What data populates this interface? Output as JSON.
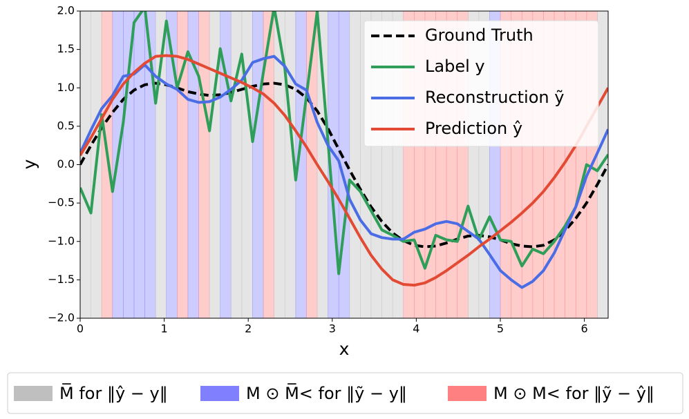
{
  "chart_data": {
    "type": "line",
    "x_label": "x",
    "y_label": "y",
    "xlim": [
      0,
      6.283
    ],
    "ylim": [
      -2,
      2
    ],
    "xticks": [
      0,
      1,
      2,
      3,
      4,
      5,
      6
    ],
    "yticks": [
      {
        "value": -2,
        "label": "−2.0"
      },
      {
        "value": -1.5,
        "label": "−1.5"
      },
      {
        "value": -1,
        "label": "−1.0"
      },
      {
        "value": -0.5,
        "label": "−0.5"
      },
      {
        "value": 0,
        "label": "0.0"
      },
      {
        "value": 0.5,
        "label": "0.5"
      },
      {
        "value": 1,
        "label": "1.0"
      },
      {
        "value": 1.5,
        "label": "1.5"
      },
      {
        "value": 2,
        "label": "2.0"
      }
    ],
    "grid": false,
    "legend": "upper right",
    "x": [
      0,
      0.128,
      0.256,
      0.385,
      0.513,
      0.641,
      0.769,
      0.898,
      1.026,
      1.154,
      1.282,
      1.411,
      1.539,
      1.667,
      1.795,
      1.923,
      2.052,
      2.18,
      2.308,
      2.436,
      2.565,
      2.693,
      2.821,
      2.949,
      3.077,
      3.206,
      3.334,
      3.462,
      3.59,
      3.719,
      3.847,
      3.975,
      4.103,
      4.231,
      4.36,
      4.488,
      4.616,
      4.744,
      4.872,
      5.001,
      5.129,
      5.257,
      5.385,
      5.513,
      5.642,
      5.77,
      5.898,
      6.026,
      6.154,
      6.283
    ],
    "series": [
      {
        "name": "Ground Truth",
        "color": "#000000",
        "style": "dashed",
        "values": [
          0,
          0.25,
          0.48,
          0.68,
          0.85,
          0.97,
          1.04,
          1.06,
          1.04,
          1.0,
          0.95,
          0.92,
          0.9,
          0.91,
          0.94,
          0.98,
          1.02,
          1.05,
          1.06,
          1.04,
          0.98,
          0.87,
          0.7,
          0.47,
          0.2,
          -0.07,
          -0.32,
          -0.55,
          -0.74,
          -0.89,
          -0.99,
          -1.05,
          -1.07,
          -1.06,
          -1.02,
          -0.97,
          -0.93,
          -0.92,
          -0.94,
          -0.98,
          -1.03,
          -1.06,
          -1.07,
          -1.05,
          -0.98,
          -0.86,
          -0.7,
          -0.5,
          -0.26,
          0
        ]
      },
      {
        "name": "Label y",
        "color": "#2e9e58",
        "style": "solid",
        "values": [
          -0.3,
          -0.63,
          0.65,
          -0.35,
          0.55,
          1.85,
          2.05,
          0.8,
          1.87,
          1.0,
          1.47,
          1.15,
          0.44,
          1.51,
          0.83,
          1.44,
          0.3,
          1.2,
          2.05,
          1.25,
          -0.2,
          0.9,
          2.0,
          0.3,
          -1.42,
          -0.2,
          -0.35,
          -0.6,
          -0.85,
          -0.92,
          -1.0,
          -0.98,
          -1.35,
          -0.92,
          -0.98,
          -1.0,
          -0.54,
          -0.98,
          -0.68,
          -0.98,
          -1.0,
          -1.32,
          -1.1,
          -1.16,
          -1.0,
          -0.8,
          -0.55,
          0.0,
          -0.08,
          0.13
        ]
      },
      {
        "name": "Reconstruction ỹ",
        "color": "#4a6de5",
        "style": "solid",
        "values": [
          0.15,
          0.45,
          0.73,
          0.9,
          1.15,
          1.18,
          1.3,
          1.15,
          1.05,
          0.98,
          0.85,
          0.81,
          0.82,
          0.88,
          0.98,
          1.1,
          1.33,
          1.38,
          1.41,
          1.28,
          1.05,
          0.97,
          0.55,
          0.25,
          0.05,
          -0.45,
          -0.72,
          -0.9,
          -0.95,
          -0.97,
          -0.97,
          -0.88,
          -0.84,
          -0.77,
          -0.74,
          -0.77,
          -0.87,
          -0.97,
          -1.17,
          -1.38,
          -1.5,
          -1.6,
          -1.52,
          -1.38,
          -1.15,
          -0.85,
          -0.55,
          -0.15,
          0.15,
          0.46
        ]
      },
      {
        "name": "Prediction ŷ",
        "color": "#e24a33",
        "style": "solid",
        "values": [
          0.12,
          0.35,
          0.6,
          0.85,
          1.05,
          1.2,
          1.32,
          1.41,
          1.42,
          1.41,
          1.37,
          1.31,
          1.25,
          1.19,
          1.13,
          1.07,
          1.0,
          0.92,
          0.8,
          0.64,
          0.44,
          0.23,
          0.0,
          -0.22,
          -0.45,
          -0.7,
          -0.95,
          -1.18,
          -1.36,
          -1.5,
          -1.56,
          -1.57,
          -1.54,
          -1.47,
          -1.38,
          -1.28,
          -1.18,
          -1.07,
          -0.97,
          -0.86,
          -0.75,
          -0.63,
          -0.5,
          -0.35,
          -0.17,
          0.03,
          0.25,
          0.5,
          0.75,
          1.0
        ]
      }
    ],
    "band_legend": [
      {
        "name": "M̅ for ‖ŷ − y‖",
        "color": "#bfbfbf"
      },
      {
        "name": "M ⊙ M̅< for ‖ỹ − y‖",
        "color": "#8080ff"
      },
      {
        "name": "M ⊙ M< for ‖ỹ − ŷ‖",
        "color": "#ff8080"
      }
    ],
    "bands": [
      0,
      0,
      2,
      1,
      1,
      1,
      1,
      0,
      1,
      2,
      1,
      2,
      0,
      1,
      0,
      0,
      1,
      2,
      0,
      0,
      1,
      2,
      0,
      1,
      1,
      0,
      0,
      0,
      0,
      0,
      2,
      2,
      2,
      2,
      2,
      2,
      0,
      0,
      1,
      2,
      2,
      2,
      2,
      2,
      2,
      2,
      2,
      2,
      0
    ]
  }
}
